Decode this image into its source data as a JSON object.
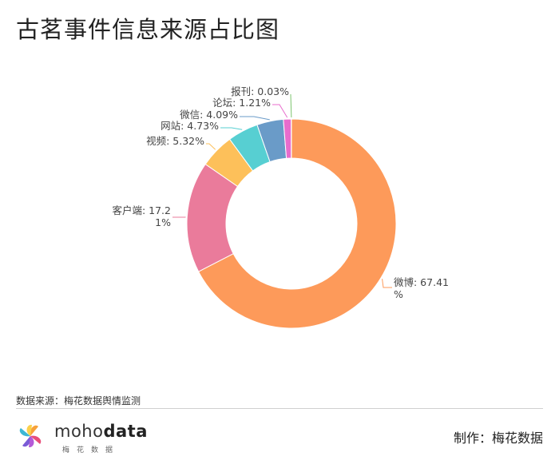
{
  "page": {
    "title": "古茗事件信息来源占比图",
    "source": "数据来源：梅花数据舆情监测",
    "producer": "制作：梅花数据",
    "logo": {
      "brand_light": "moho",
      "brand_bold": "data",
      "subtitle": "梅花数据"
    }
  },
  "chart_data": {
    "type": "pie",
    "variant": "donut",
    "title": "古茗事件信息来源占比图",
    "slices": [
      {
        "name": "微博",
        "value": 67.41,
        "color": "#fd9a5a",
        "label": "微博: 67.41%"
      },
      {
        "name": "客户端",
        "value": 17.21,
        "color": "#ea7b9b",
        "label": "客户端: 17.21%"
      },
      {
        "name": "视频",
        "value": 5.32,
        "color": "#fdc05a",
        "label": "视频: 5.32%"
      },
      {
        "name": "网站",
        "value": 4.73,
        "color": "#57cfd2",
        "label": "网站: 4.73%"
      },
      {
        "name": "微信",
        "value": 4.09,
        "color": "#6a9bc8",
        "label": "微信: 4.09%"
      },
      {
        "name": "论坛",
        "value": 1.21,
        "color": "#e86ccd",
        "label": "论坛: 1.21%"
      },
      {
        "name": "报刊",
        "value": 0.03,
        "color": "#7cc46e",
        "label": "报刊: 0.03%"
      }
    ]
  }
}
